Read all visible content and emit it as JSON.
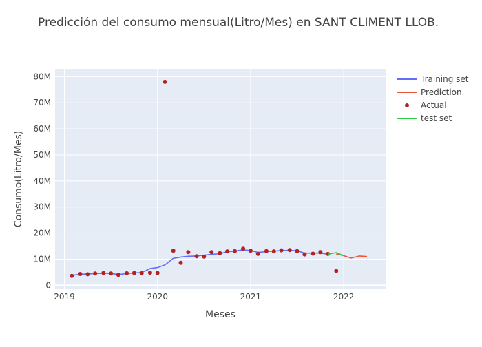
{
  "chart_data": {
    "type": "line",
    "title": "Predicción del consumo mensual(Litro/Mes) en SANT CLIMENT LLOB.",
    "xlabel": "Meses",
    "ylabel": "Consumo(Litro/Mes)",
    "x_ticks": [
      {
        "value": 2019.0,
        "label": "2019"
      },
      {
        "value": 2020.0,
        "label": "2020"
      },
      {
        "value": 2021.0,
        "label": "2021"
      },
      {
        "value": 2022.0,
        "label": "2022"
      }
    ],
    "y_ticks": [
      {
        "value": 0,
        "label": "0"
      },
      {
        "value": 10000000,
        "label": "10M"
      },
      {
        "value": 20000000,
        "label": "20M"
      },
      {
        "value": 30000000,
        "label": "30M"
      },
      {
        "value": 40000000,
        "label": "40M"
      },
      {
        "value": 50000000,
        "label": "50M"
      },
      {
        "value": 60000000,
        "label": "60M"
      },
      {
        "value": 70000000,
        "label": "70M"
      },
      {
        "value": 80000000,
        "label": "80M"
      }
    ],
    "xlim": [
      2018.9,
      2022.45
    ],
    "ylim": [
      -1500000,
      83000000
    ],
    "grid": true,
    "legend_position": "right",
    "series": [
      {
        "name": "Training set",
        "kind": "line",
        "color": "#636efa",
        "x": [
          2019.08,
          2019.17,
          2019.25,
          2019.33,
          2019.42,
          2019.5,
          2019.58,
          2019.67,
          2019.75,
          2019.83,
          2019.92,
          2020.0,
          2020.08,
          2020.17,
          2020.25,
          2020.33,
          2020.42,
          2020.5,
          2020.58,
          2020.67,
          2020.75,
          2020.83,
          2020.92,
          2021.0,
          2021.08,
          2021.17,
          2021.25,
          2021.33,
          2021.42,
          2021.5,
          2021.58,
          2021.67,
          2021.75,
          2021.83
        ],
        "y": [
          3800000,
          4200000,
          4300000,
          4500000,
          4600000,
          4500000,
          4100000,
          4500000,
          4700000,
          4900000,
          6400000,
          6800000,
          7800000,
          10300000,
          10800000,
          11100000,
          11200000,
          11500000,
          11800000,
          12100000,
          12800000,
          13100000,
          13600000,
          13300000,
          12600000,
          12900000,
          13100000,
          13300000,
          13400000,
          13200000,
          12300000,
          12300000,
          12300000,
          11900000
        ]
      },
      {
        "name": "Prediction",
        "kind": "line",
        "color": "#ef553b",
        "x": [
          2021.92,
          2022.0,
          2022.08,
          2022.17,
          2022.25
        ],
        "y": [
          12000000,
          11300000,
          10400000,
          11200000,
          11000000
        ]
      },
      {
        "name": "Actual",
        "kind": "markers",
        "color": "#b22222",
        "x": [
          2019.08,
          2019.17,
          2019.25,
          2019.33,
          2019.42,
          2019.5,
          2019.58,
          2019.67,
          2019.75,
          2019.83,
          2019.92,
          2020.0,
          2020.08,
          2020.17,
          2020.25,
          2020.33,
          2020.42,
          2020.5,
          2020.58,
          2020.67,
          2020.75,
          2020.83,
          2020.92,
          2021.0,
          2021.08,
          2021.17,
          2021.25,
          2021.33,
          2021.42,
          2021.5,
          2021.58,
          2021.67,
          2021.75,
          2021.83,
          2021.92
        ],
        "y": [
          3600000,
          4300000,
          4200000,
          4500000,
          4700000,
          4500000,
          4000000,
          4600000,
          4700000,
          4600000,
          4800000,
          4700000,
          78000000,
          13200000,
          8600000,
          12700000,
          11100000,
          11000000,
          12700000,
          12300000,
          13000000,
          13100000,
          14000000,
          13200000,
          12000000,
          13100000,
          13000000,
          13400000,
          13500000,
          13100000,
          11800000,
          12100000,
          12700000,
          12000000,
          5500000
        ]
      },
      {
        "name": "test set",
        "kind": "line",
        "color": "#2ecc40",
        "x": [
          2021.83,
          2021.92,
          2022.0
        ],
        "y": [
          11900000,
          12500000,
          11300000
        ]
      }
    ]
  }
}
